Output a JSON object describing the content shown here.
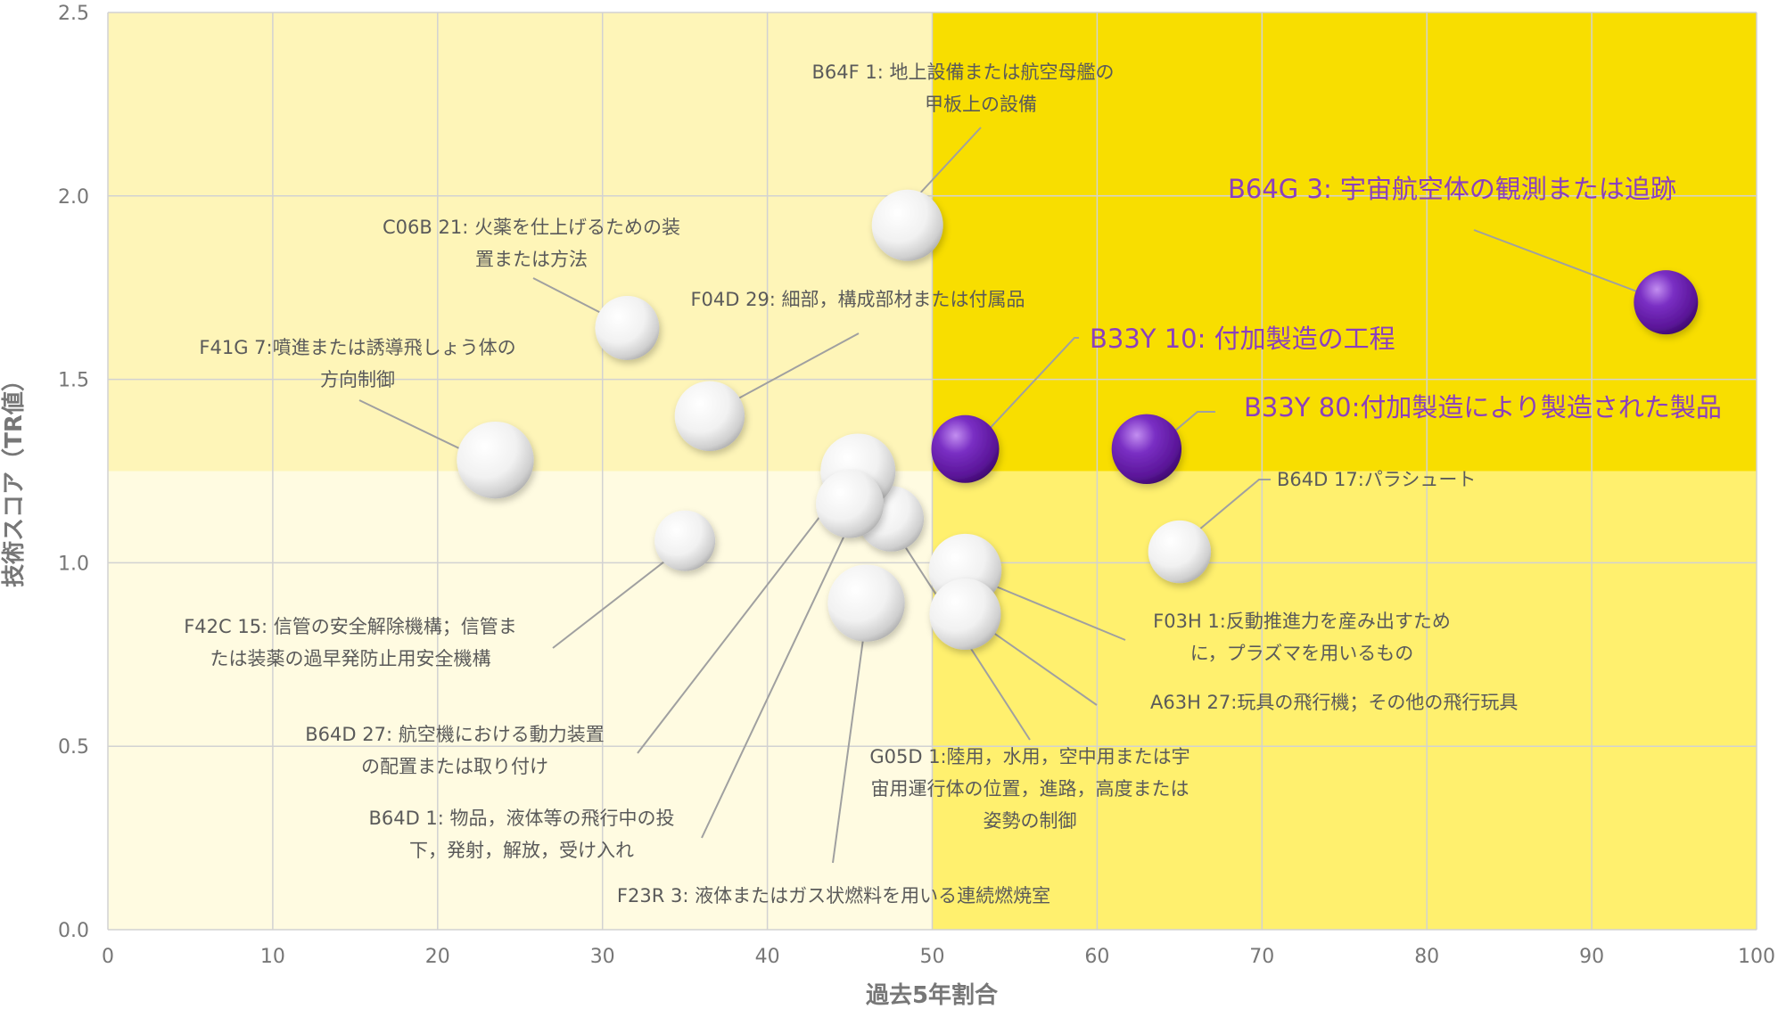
{
  "chart_data": {
    "type": "scatter",
    "xlabel": "過去5年割合",
    "ylabel": "技術スコア（TR値）",
    "xlim": [
      0,
      100
    ],
    "ylim": [
      0,
      2.5
    ],
    "xticks": [
      "0",
      "10",
      "20",
      "30",
      "40",
      "50",
      "60",
      "70",
      "80",
      "90",
      "100"
    ],
    "yticks": [
      "0.0",
      "0.5",
      "1.0",
      "1.5",
      "2.0",
      "2.5"
    ],
    "quadrant_split": {
      "x": 50,
      "y": 1.25
    },
    "colors": {
      "bg_low_left": "#fffbe1",
      "bg_high_left": "#fef5b8",
      "bg_low_right": "#fff06e",
      "bg_high_right": "#f8de00",
      "highlight_bubble": "#6a22b0",
      "normal_bubble": "#f2f2f2",
      "highlight_text": "#8a3fbf"
    },
    "points": [
      {
        "id": "B64F1",
        "x": 48.5,
        "y": 1.92,
        "size": 1.0,
        "highlight": false,
        "label": [
          "B64F 1: 地上設備または航空母艦の",
          "甲板上の設備"
        ]
      },
      {
        "id": "C06B21",
        "x": 31.5,
        "y": 1.64,
        "size": 0.9,
        "highlight": false,
        "label": [
          "C06B 21: 火薬を仕上げるための装",
          "置または方法"
        ]
      },
      {
        "id": "F04D29",
        "x": 36.5,
        "y": 1.4,
        "size": 0.98,
        "highlight": false,
        "label": [
          "F04D 29: 細部，構成部材または付属品"
        ]
      },
      {
        "id": "F41G7",
        "x": 23.5,
        "y": 1.28,
        "size": 1.08,
        "highlight": false,
        "label": [
          "F41G 7:噴進または誘導飛しょう体の",
          "方向制御"
        ]
      },
      {
        "id": "B64G3",
        "x": 94.5,
        "y": 1.71,
        "size": 0.9,
        "highlight": true,
        "label": [
          "B64G 3: 宇宙航空体の観測または追跡"
        ]
      },
      {
        "id": "B33Y10",
        "x": 52.0,
        "y": 1.31,
        "size": 0.95,
        "highlight": true,
        "label": [
          "B33Y 10: 付加製造の工程"
        ]
      },
      {
        "id": "B33Y80",
        "x": 63.0,
        "y": 1.31,
        "size": 0.98,
        "highlight": true,
        "label": [
          "B33Y 80:付加製造により製造された製品"
        ]
      },
      {
        "id": "B64D17",
        "x": 65.0,
        "y": 1.03,
        "size": 0.88,
        "highlight": false,
        "label": [
          "B64D 17:パラシュート"
        ]
      },
      {
        "id": "F03H1",
        "x": 52.0,
        "y": 0.98,
        "size": 1.02,
        "highlight": false,
        "label": [
          "F03H 1:反動推進力を産み出すため",
          "に，プラズマを用いるもの"
        ]
      },
      {
        "id": "A63H27",
        "x": 52.0,
        "y": 0.86,
        "size": 1.0,
        "highlight": false,
        "label": [
          "A63H 27:玩具の飛行機；その他の飛行玩具"
        ]
      },
      {
        "id": "G05D1",
        "x": 47.5,
        "y": 1.12,
        "size": 0.92,
        "highlight": false,
        "label": [
          "G05D 1:陸用，水用，空中用または宇",
          "宙用運行体の位置，進路，高度または",
          "姿勢の制御"
        ]
      },
      {
        "id": "F23R3",
        "x": 46.0,
        "y": 0.89,
        "size": 1.08,
        "highlight": false,
        "label": [
          "F23R 3: 液体またはガス状燃料を用いる連続燃焼室"
        ]
      },
      {
        "id": "B64D27",
        "x": 45.5,
        "y": 1.25,
        "size": 1.05,
        "highlight": false,
        "label": [
          "B64D 27: 航空機における動力装置",
          "の配置または取り付け"
        ]
      },
      {
        "id": "B64D1",
        "x": 45.0,
        "y": 1.16,
        "size": 0.95,
        "highlight": false,
        "label": [
          "B64D 1: 物品，液体等の飛行中の投",
          "下，発射，解放，受け入れ"
        ]
      },
      {
        "id": "F42C15",
        "x": 35.0,
        "y": 1.06,
        "size": 0.85,
        "highlight": false,
        "label": [
          "F42C 15: 信管の安全解除機構；信管ま",
          "たは装薬の過早発防止用安全機構"
        ]
      }
    ]
  }
}
